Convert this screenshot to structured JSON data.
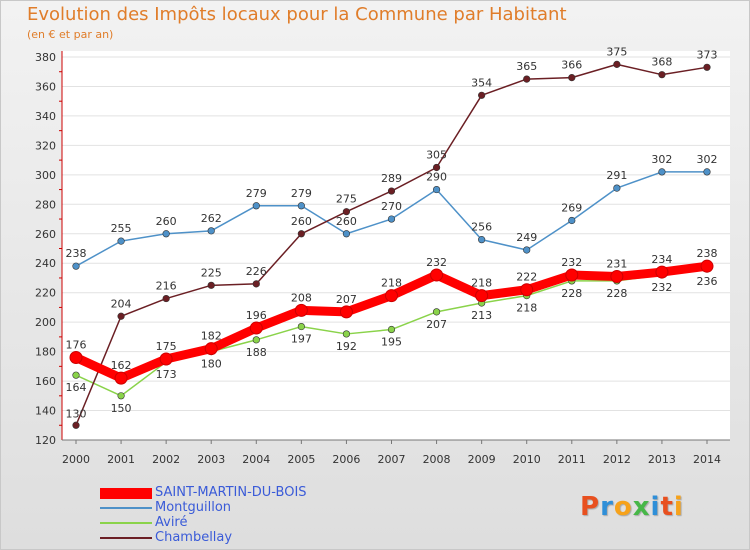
{
  "header": {
    "title": "Evolution des Impôts locaux pour la Commune par Habitant",
    "subtitle": "(en € et par an)"
  },
  "chart_data": {
    "type": "line",
    "title": "Evolution des Impôts locaux pour la Commune par Habitant",
    "subtitle": "(en € et par an)",
    "xlabel": "",
    "ylabel": "",
    "x": [
      "2000",
      "2001",
      "2002",
      "2003",
      "2004",
      "2005",
      "2006",
      "2007",
      "2008",
      "2009",
      "2010",
      "2011",
      "2012",
      "2013",
      "2014"
    ],
    "ylim": [
      120,
      380
    ],
    "yticks": [
      120,
      140,
      160,
      180,
      200,
      220,
      240,
      260,
      280,
      300,
      320,
      340,
      360,
      380
    ],
    "grid": "horizontal",
    "legend_position": "bottom-left",
    "series": [
      {
        "name": "SAINT-MARTIN-DU-BOIS",
        "color": "#ff0000",
        "values": [
          176,
          162,
          175,
          182,
          196,
          208,
          207,
          218,
          232,
          218,
          222,
          232,
          231,
          234,
          238
        ]
      },
      {
        "name": "Montguillon",
        "color": "#4e91c8",
        "values": [
          238,
          255,
          260,
          262,
          279,
          279,
          260,
          270,
          290,
          256,
          249,
          269,
          291,
          302,
          302
        ]
      },
      {
        "name": "Aviré",
        "color": "#8ad34a",
        "values": [
          164,
          150,
          173,
          180,
          188,
          197,
          192,
          195,
          207,
          213,
          218,
          228,
          228,
          232,
          236
        ]
      },
      {
        "name": "Chambellay",
        "color": "#6b1f24",
        "values": [
          130,
          204,
          216,
          225,
          226,
          260,
          275,
          289,
          305,
          354,
          365,
          366,
          375,
          368,
          373
        ]
      }
    ]
  },
  "legend": {
    "items": [
      "SAINT-MARTIN-DU-BOIS",
      "Montguillon",
      "Aviré",
      "Chambellay"
    ]
  },
  "logo": {
    "letters": [
      "P",
      "r",
      "o",
      "x",
      "i",
      "t",
      "i"
    ],
    "colors": [
      "#e8501f",
      "#2f8fd8",
      "#f6a21b",
      "#47b748",
      "#2f8fd8",
      "#e8501f",
      "#f6a21b"
    ]
  }
}
